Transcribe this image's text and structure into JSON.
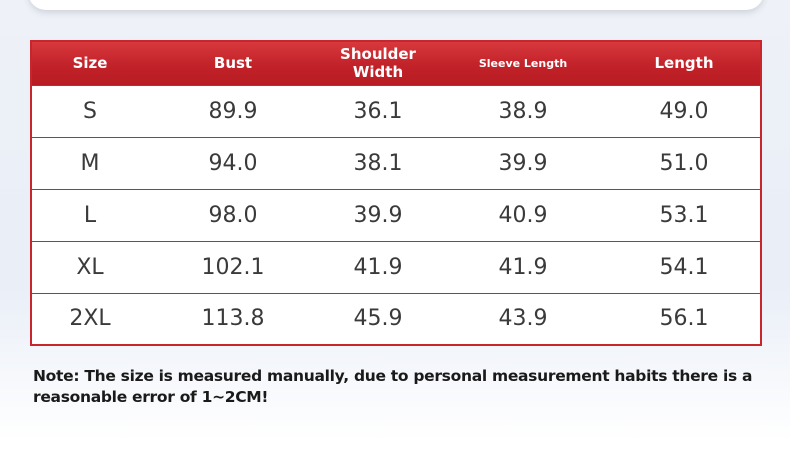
{
  "table": {
    "headers": [
      "Size",
      "Bust",
      "Shoulder Width",
      "Sleeve Length",
      "Length"
    ],
    "rows": [
      [
        "S",
        "89.9",
        "36.1",
        "38.9",
        "49.0"
      ],
      [
        "M",
        "94.0",
        "38.1",
        "39.9",
        "51.0"
      ],
      [
        "L",
        "98.0",
        "39.9",
        "40.9",
        "53.1"
      ],
      [
        "XL",
        "102.1",
        "41.9",
        "41.9",
        "54.1"
      ],
      [
        "2XL",
        "113.8",
        "45.9",
        "43.9",
        "56.1"
      ]
    ]
  },
  "note": "Note: The size is measured manually, due to personal measurement habits there is a reasonable error of 1~2CM!",
  "colors": {
    "header_red": "#c22229",
    "border_red": "#c8252d",
    "cell_text": "#3a3a3a"
  }
}
